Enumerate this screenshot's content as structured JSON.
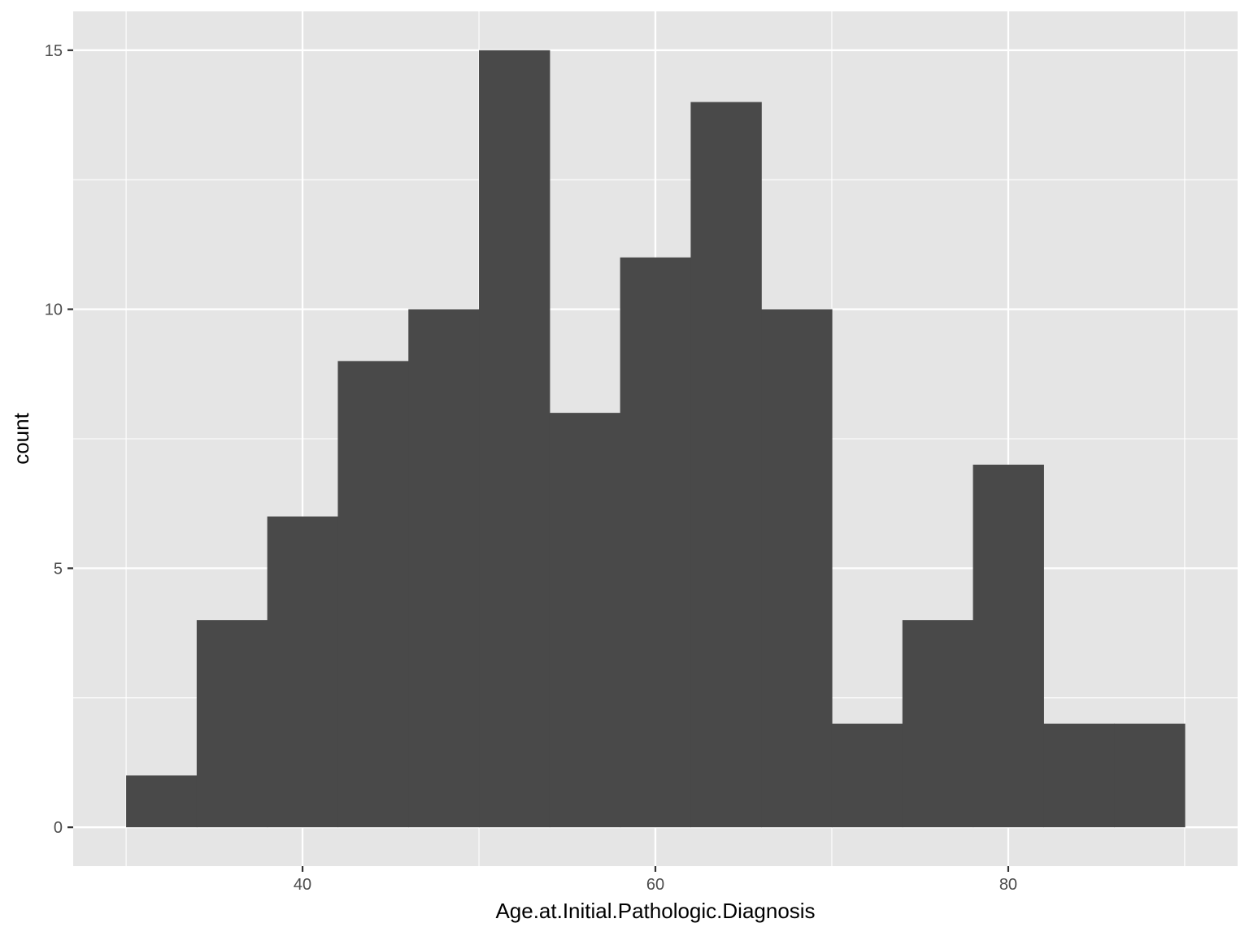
{
  "chart_data": {
    "type": "bar",
    "subtype": "histogram",
    "title": "",
    "xlabel": "Age.at.Initial.Pathologic.Diagnosis",
    "ylabel": "count",
    "bins": [
      {
        "x0": 30,
        "x1": 34,
        "count": 1
      },
      {
        "x0": 34,
        "x1": 38,
        "count": 4
      },
      {
        "x0": 38,
        "x1": 42,
        "count": 6
      },
      {
        "x0": 42,
        "x1": 46,
        "count": 9
      },
      {
        "x0": 46,
        "x1": 50,
        "count": 10
      },
      {
        "x0": 50,
        "x1": 54,
        "count": 15
      },
      {
        "x0": 54,
        "x1": 58,
        "count": 8
      },
      {
        "x0": 58,
        "x1": 62,
        "count": 11
      },
      {
        "x0": 62,
        "x1": 66,
        "count": 14
      },
      {
        "x0": 66,
        "x1": 70,
        "count": 10
      },
      {
        "x0": 70,
        "x1": 74,
        "count": 2
      },
      {
        "x0": 74,
        "x1": 78,
        "count": 4
      },
      {
        "x0": 78,
        "x1": 82,
        "count": 7
      },
      {
        "x0": 82,
        "x1": 86,
        "count": 2
      },
      {
        "x0": 86,
        "x1": 90,
        "count": 2
      }
    ],
    "xlim": [
      27,
      93
    ],
    "ylim": [
      -0.75,
      15.75
    ],
    "x_ticks": [
      40,
      60,
      80
    ],
    "x_tick_labels": [
      "40",
      "60",
      "80"
    ],
    "x_minor_ticks": [
      30,
      50,
      70,
      90
    ],
    "y_ticks": [
      0,
      5,
      10,
      15
    ],
    "y_tick_labels": [
      "0",
      "5",
      "10",
      "15"
    ],
    "y_minor_ticks": [
      2.5,
      7.5,
      12.5
    ],
    "grid": true,
    "legend": "none",
    "colors": {
      "bar_fill": "#494949",
      "panel_background": "#e5e5e5",
      "grid": "#ffffff",
      "tick_text": "#4d4d4d",
      "tick_mark": "#333333"
    }
  }
}
